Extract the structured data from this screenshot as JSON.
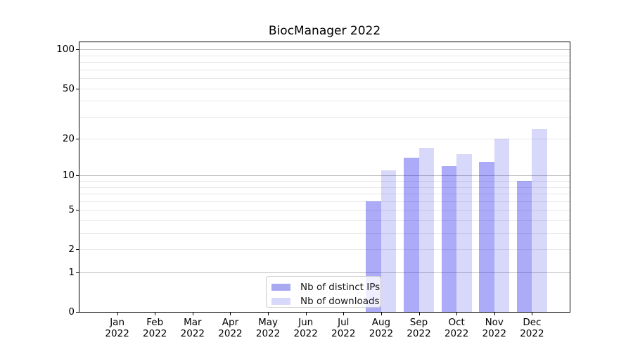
{
  "chart_data": {
    "type": "bar",
    "title": "BiocManager 2022",
    "categories": [
      "Jan",
      "Feb",
      "Mar",
      "Apr",
      "May",
      "Jun",
      "Jul",
      "Aug",
      "Sep",
      "Oct",
      "Nov",
      "Dec"
    ],
    "xtick_year_line": "2022",
    "series": [
      {
        "name": "Nb of distinct IPs",
        "fill": "rgba(15,15,232,0.35)",
        "swatch": "#a9a9f1",
        "values": [
          0,
          0,
          0,
          0,
          0,
          0,
          0,
          6,
          14,
          12,
          13,
          9
        ]
      },
      {
        "name": "Nb of downloads",
        "fill": "rgba(15,15,232,0.16)",
        "swatch": "#d8d8fa",
        "values": [
          0,
          0,
          0,
          0,
          0,
          0,
          0,
          11,
          17,
          15,
          20,
          24
        ]
      }
    ],
    "yticks": [
      0,
      1,
      2,
      5,
      10,
      20,
      50,
      100
    ],
    "major_gridline_values": [
      1,
      10,
      100
    ],
    "minor_gridline_values": [
      2,
      3,
      4,
      5,
      6,
      7,
      8,
      9,
      20,
      30,
      40,
      50,
      60,
      70,
      80,
      90
    ],
    "scale": "log1p",
    "ylim": [
      0,
      113.8
    ],
    "grid": true,
    "legend_position": "lower center",
    "colors": {
      "bar_dark_on_white": "#abaff7",
      "bar_light_on_white": "#d9d9fb",
      "grid_major": "#bcbcbc",
      "grid_minor": "#e8e8e8",
      "axis": "#000000"
    }
  }
}
